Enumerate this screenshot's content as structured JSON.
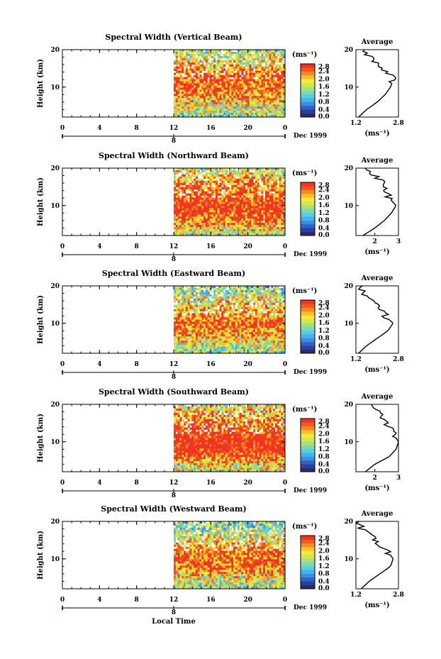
{
  "colors": {
    "scale": [
      "#2b2b6b",
      "#2d3f9e",
      "#2f63c8",
      "#3b8ee0",
      "#46b4ec",
      "#5ccde0",
      "#7ed8b4",
      "#a8e07a",
      "#d3e84a",
      "#f5e83a",
      "#fbc02a",
      "#f98a22",
      "#f25a1e",
      "#ee3524"
    ]
  },
  "panels": [
    {
      "title": "Spectral Width (Vertical Beam)",
      "avg_title": "Average",
      "unit": "(ms⁻¹)",
      "avg_xticks": [
        "1.2",
        "2.8"
      ],
      "date": "Dec 1999",
      "day": "8"
    },
    {
      "title": "Spectral Width (Northward Beam)",
      "avg_title": "Average",
      "unit": "(ms⁻¹)",
      "avg_xticks": [
        "2",
        "3"
      ],
      "date": "Dec 1999",
      "day": "8"
    },
    {
      "title": "Spectral Width (Eastward Beam)",
      "avg_title": "Average",
      "unit": "(ms⁻¹)",
      "avg_xticks": [
        "1.2",
        "2.8"
      ],
      "date": "Dec 1999",
      "day": "8"
    },
    {
      "title": "Spectral Width (Southward Beam)",
      "avg_title": "Average",
      "unit": "(ms⁻¹)",
      "avg_xticks": [
        "2",
        "3"
      ],
      "date": "Dec 1999",
      "day": "8"
    },
    {
      "title": "Spectral Width (Westward Beam)",
      "avg_title": "Average",
      "unit": "(ms⁻¹)",
      "avg_xticks": [
        "1.2",
        "2.8"
      ],
      "date": "Dec 1999",
      "day": "8"
    }
  ],
  "axis": {
    "ylabel": "Height (km)",
    "yticks": [
      "20",
      "10"
    ],
    "xticks": [
      "0",
      "4",
      "8",
      "12",
      "16",
      "20",
      "0"
    ],
    "colorbar_ticks": [
      "2.8",
      "2.4",
      "2.0",
      "1.6",
      "1.2",
      "0.8",
      "0.4",
      "0.0"
    ],
    "xlabel": "Local Time"
  },
  "chart_data": [
    {
      "type": "heatmap",
      "title": "Spectral Width (Vertical Beam)",
      "ylabel": "Height (km)",
      "xlabel": "Local Time",
      "x_range": [
        0,
        24
      ],
      "y_range": [
        2,
        20
      ],
      "data_x_range": [
        12,
        24
      ],
      "z_range": [
        0,
        2.8
      ],
      "z_unit": "ms⁻¹",
      "average": {
        "type": "line",
        "x_range": [
          1.2,
          2.8
        ],
        "heights": [
          2,
          4,
          6,
          8,
          10,
          12,
          14,
          16,
          18,
          20
        ],
        "values": [
          1.3,
          1.6,
          2.0,
          2.3,
          2.5,
          2.6,
          2.4,
          2.0,
          1.7,
          1.5
        ]
      }
    },
    {
      "type": "heatmap",
      "title": "Spectral Width (Northward Beam)",
      "ylabel": "Height (km)",
      "xlabel": "Local Time",
      "x_range": [
        0,
        24
      ],
      "y_range": [
        2,
        20
      ],
      "data_x_range": [
        12,
        24
      ],
      "z_range": [
        0,
        2.8
      ],
      "z_unit": "ms⁻¹",
      "average": {
        "type": "line",
        "x_range": [
          1.2,
          3.0
        ],
        "heights": [
          2,
          4,
          6,
          8,
          10,
          12,
          14,
          16,
          18,
          20
        ],
        "values": [
          1.5,
          2.0,
          2.4,
          2.7,
          2.9,
          2.6,
          2.5,
          2.4,
          2.0,
          1.6
        ]
      }
    },
    {
      "type": "heatmap",
      "title": "Spectral Width (Eastward Beam)",
      "ylabel": "Height (km)",
      "xlabel": "Local Time",
      "x_range": [
        0,
        24
      ],
      "y_range": [
        2,
        20
      ],
      "data_x_range": [
        12,
        24
      ],
      "z_range": [
        0,
        2.8
      ],
      "z_unit": "ms⁻¹",
      "average": {
        "type": "line",
        "x_range": [
          1.2,
          2.8
        ],
        "heights": [
          2,
          4,
          6,
          8,
          10,
          12,
          14,
          16,
          18,
          20
        ],
        "values": [
          1.3,
          1.6,
          2.0,
          2.4,
          2.6,
          2.3,
          2.1,
          1.9,
          1.5,
          1.3
        ]
      }
    },
    {
      "type": "heatmap",
      "title": "Spectral Width (Southward Beam)",
      "ylabel": "Height (km)",
      "xlabel": "Local Time",
      "x_range": [
        0,
        24
      ],
      "y_range": [
        2,
        20
      ],
      "data_x_range": [
        12,
        24
      ],
      "z_range": [
        0,
        2.8
      ],
      "z_unit": "ms⁻¹",
      "average": {
        "type": "line",
        "x_range": [
          1.2,
          3.0
        ],
        "heights": [
          2,
          4,
          6,
          8,
          10,
          12,
          14,
          16,
          18,
          20
        ],
        "values": [
          1.6,
          2.0,
          2.6,
          2.9,
          3.0,
          2.8,
          2.6,
          2.4,
          2.1,
          1.8
        ]
      }
    },
    {
      "type": "heatmap",
      "title": "Spectral Width (Westward Beam)",
      "ylabel": "Height (km)",
      "xlabel": "Local Time",
      "x_range": [
        0,
        24
      ],
      "y_range": [
        2,
        20
      ],
      "data_x_range": [
        12,
        24
      ],
      "z_range": [
        0,
        2.8
      ],
      "z_unit": "ms⁻¹",
      "average": {
        "type": "line",
        "x_range": [
          1.2,
          2.8
        ],
        "heights": [
          2,
          4,
          6,
          8,
          10,
          12,
          14,
          16,
          18,
          20
        ],
        "values": [
          1.4,
          1.7,
          2.1,
          2.5,
          2.6,
          2.4,
          2.1,
          1.8,
          1.4,
          1.3
        ]
      }
    }
  ]
}
